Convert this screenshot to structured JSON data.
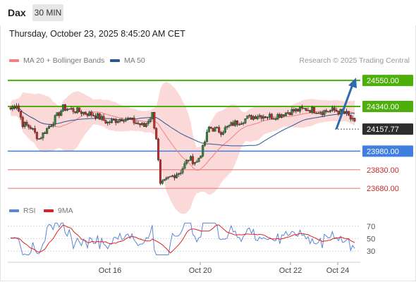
{
  "header": {
    "symbol": "Dax",
    "interval": "30 MIN",
    "timestamp": "Thursday, October 23, 2025 8:45:20 AM CET"
  },
  "legend": {
    "ma20_label": "MA 20 + Bollinger Bands",
    "ma50_label": "MA 50",
    "rsi_label": "RSI",
    "rsi_ma_label": "9MA",
    "copyright": "Research © 2025 Trading Central"
  },
  "colors": {
    "up": "#2b8a3e",
    "down": "#c92a2a",
    "band": "#fbd5d5",
    "ma20": "#f28080",
    "ma50": "#2c5696",
    "resistance": "#4caf0a",
    "support": "#3f7fe0",
    "minor_support": "#e57373",
    "arrow": "#2f69b0",
    "rsi": "#5b86d6",
    "rsi_ma": "#e02020"
  },
  "chart_data": [
    {
      "type": "candlestick",
      "title": "Dax 30 MIN",
      "ylim": [
        23590,
        24670
      ],
      "x_ticks": [
        "Oct 16",
        "Oct 20",
        "Oct 22",
        "Oct 24"
      ],
      "series": [
        {
          "name": "MA 20 + Bollinger Bands"
        },
        {
          "name": "MA 50"
        }
      ],
      "levels": [
        {
          "value": "24550.00",
          "kind": "resistance"
        },
        {
          "value": "24340.00",
          "kind": "resistance"
        },
        {
          "value": "24157.77",
          "kind": "last"
        },
        {
          "value": "23980.00",
          "kind": "support"
        },
        {
          "value": "23830.00",
          "kind": "minor_support"
        },
        {
          "value": "23680.00",
          "kind": "minor_support"
        }
      ],
      "forecast_arrow": {
        "from": 24157.77,
        "to": 24550
      }
    },
    {
      "type": "line",
      "title": "RSI",
      "ylim": [
        20,
        80
      ],
      "y_ticks": [
        "70",
        "50",
        "30"
      ],
      "series": [
        {
          "name": "RSI"
        },
        {
          "name": "9MA"
        }
      ]
    }
  ]
}
